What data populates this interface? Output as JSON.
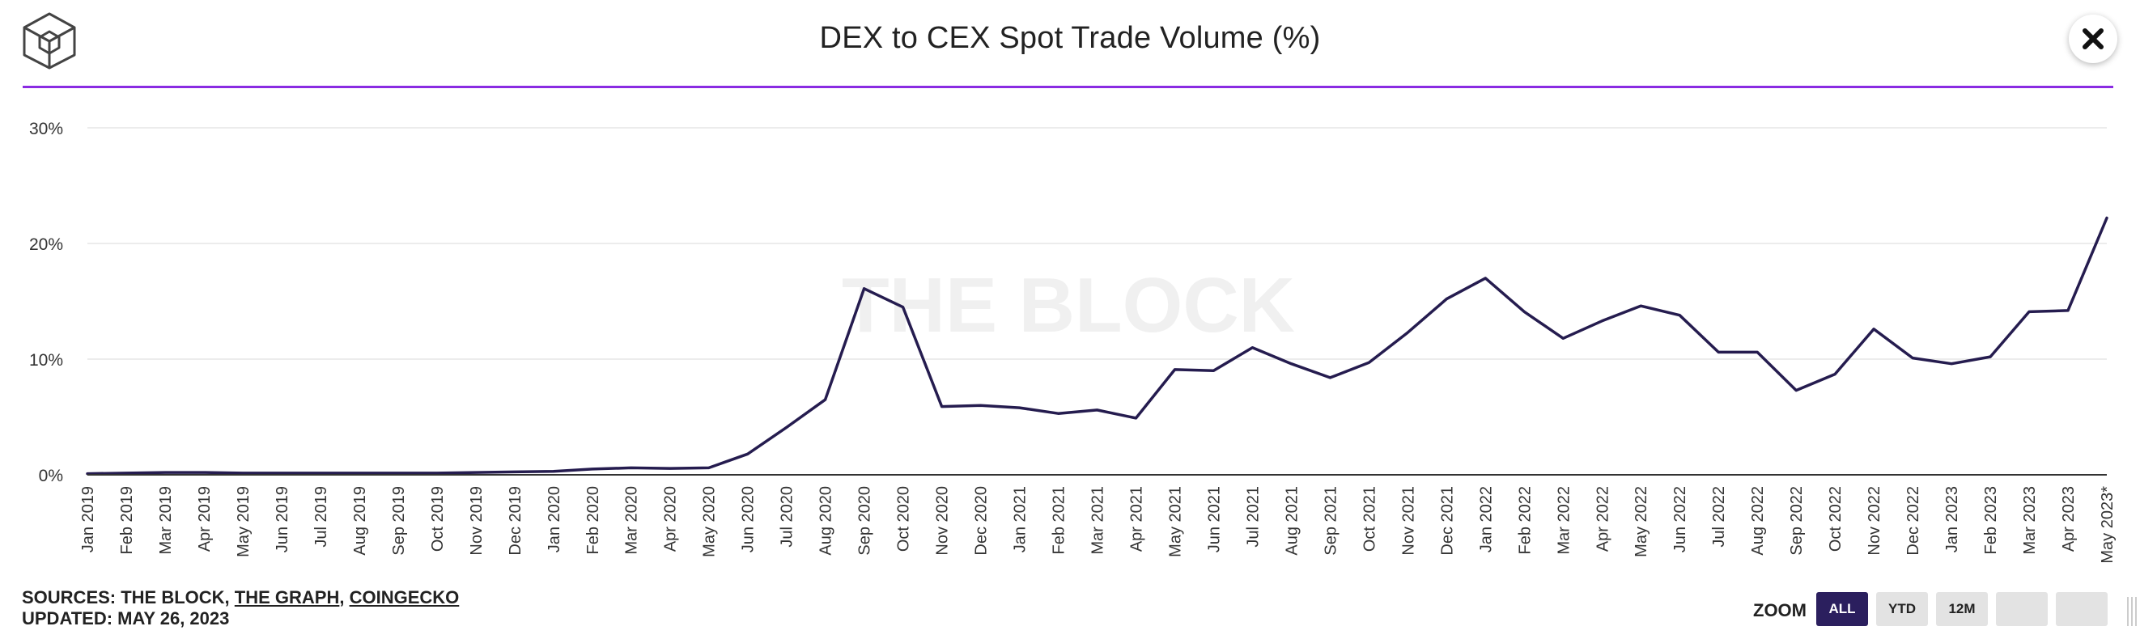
{
  "header": {
    "title": "DEX to CEX Spot Trade Volume (%)"
  },
  "footer": {
    "sources_prefix": "SOURCES: THE BLOCK, ",
    "sources_link1": "THE GRAPH",
    "sources_sep": ", ",
    "sources_link2": "COINGECKO",
    "updated": "UPDATED: MAY 26, 2023"
  },
  "zoom": {
    "label": "ZOOM",
    "buttons": [
      "ALL",
      "YTD",
      "12M",
      "",
      ""
    ],
    "active": "ALL"
  },
  "watermark": "THE BLOCK",
  "colors": {
    "line": "#251c4f",
    "accent": "#8a2be2",
    "zoom_active": "#2b1f5e"
  },
  "chart_data": {
    "type": "line",
    "title": "DEX to CEX Spot Trade Volume (%)",
    "xlabel": "",
    "ylabel": "",
    "ylim": [
      0,
      30
    ],
    "yticks": [
      0,
      10,
      20,
      30
    ],
    "ytick_labels": [
      "0%",
      "10%",
      "20%",
      "30%"
    ],
    "grid": true,
    "legend": "none",
    "categories": [
      "Jan 2019",
      "Feb 2019",
      "Mar 2019",
      "Apr 2019",
      "May 2019",
      "Jun 2019",
      "Jul 2019",
      "Aug 2019",
      "Sep 2019",
      "Oct 2019",
      "Nov 2019",
      "Dec 2019",
      "Jan 2020",
      "Feb 2020",
      "Mar 2020",
      "Apr 2020",
      "May 2020",
      "Jun 2020",
      "Jul 2020",
      "Aug 2020",
      "Sep 2020",
      "Oct 2020",
      "Nov 2020",
      "Dec 2020",
      "Jan 2021",
      "Feb 2021",
      "Mar 2021",
      "Apr 2021",
      "May 2021",
      "Jun 2021",
      "Jul 2021",
      "Aug 2021",
      "Sep 2021",
      "Oct 2021",
      "Nov 2021",
      "Dec 2021",
      "Jan 2022",
      "Feb 2022",
      "Mar 2022",
      "Apr 2022",
      "May 2022",
      "Jun 2022",
      "Jul 2022",
      "Aug 2022",
      "Sep 2022",
      "Oct 2022",
      "Nov 2022",
      "Dec 2022",
      "Jan 2023",
      "Feb 2023",
      "Mar 2023",
      "Apr 2023",
      "May 2023*"
    ],
    "series": [
      {
        "values": [
          0.1,
          0.15,
          0.2,
          0.2,
          0.15,
          0.15,
          0.15,
          0.15,
          0.15,
          0.15,
          0.2,
          0.25,
          0.3,
          0.5,
          0.6,
          0.55,
          0.6,
          1.8,
          4.1,
          6.5,
          16.1,
          14.5,
          5.9,
          6.0,
          5.8,
          5.3,
          5.6,
          4.9,
          9.1,
          9.0,
          11.0,
          9.6,
          8.4,
          9.7,
          12.3,
          15.2,
          17.0,
          14.1,
          11.8,
          13.3,
          14.6,
          13.8,
          10.6,
          10.6,
          7.3,
          8.7,
          12.6,
          10.1,
          9.6,
          10.2,
          14.1,
          14.2,
          22.2
        ]
      }
    ]
  }
}
